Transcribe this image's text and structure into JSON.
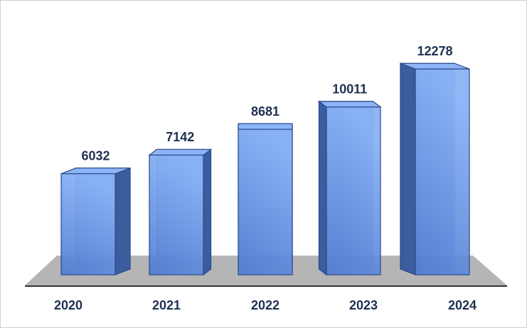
{
  "chart_data": {
    "type": "bar3d",
    "categories": [
      "2020",
      "2021",
      "2022",
      "2023",
      "2024"
    ],
    "values": [
      6032,
      7142,
      8681,
      10011,
      12278
    ],
    "color": "#6b98e6"
  }
}
